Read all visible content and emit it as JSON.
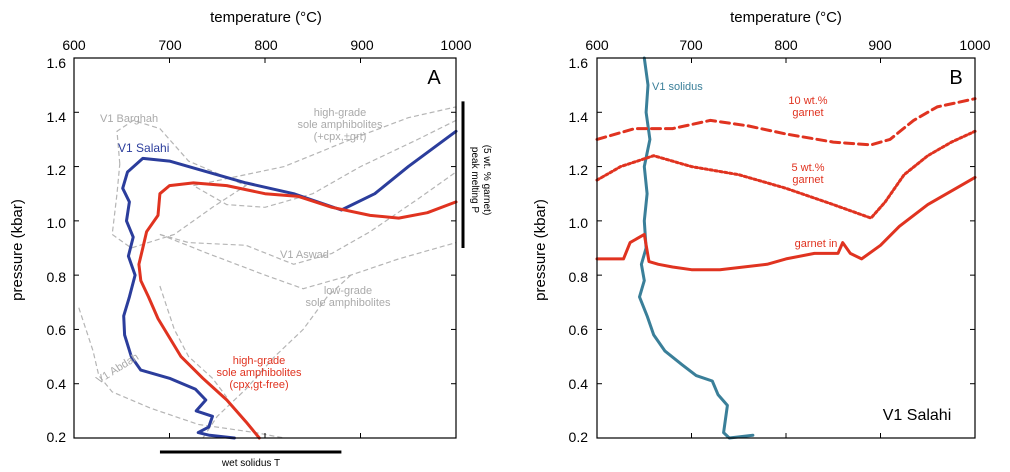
{
  "chart_data": [
    {
      "panel": "A",
      "type": "line",
      "xlabel": "temperature (°C)",
      "ylabel": "pressure (kbar)",
      "xlim": [
        600,
        1000
      ],
      "ylim": [
        0.2,
        1.6
      ],
      "xticks": [
        "600",
        "700",
        "800",
        "900",
        "1000"
      ],
      "yticks": [
        "0.2",
        "0.4",
        "0.6",
        "0.8",
        "1.0",
        "1.2",
        "1.4",
        "1.6"
      ],
      "grid": false,
      "series": [
        {
          "name": "V1 Salahi",
          "color": "#2b3d9c",
          "points": [
            [
              768,
              0.2
            ],
            [
              742,
              0.21
            ],
            [
              730,
              0.22
            ],
            [
              741,
              0.24
            ],
            [
              745,
              0.28
            ],
            [
              728,
              0.3
            ],
            [
              738,
              0.34
            ],
            [
              727,
              0.38
            ],
            [
              700,
              0.42
            ],
            [
              670,
              0.45
            ],
            [
              660,
              0.5
            ],
            [
              653,
              0.58
            ],
            [
              652,
              0.65
            ],
            [
              658,
              0.72
            ],
            [
              664,
              0.8
            ],
            [
              657,
              0.87
            ],
            [
              662,
              0.94
            ],
            [
              655,
              1.0
            ],
            [
              658,
              1.07
            ],
            [
              651,
              1.12
            ],
            [
              656,
              1.18
            ],
            [
              672,
              1.23
            ],
            [
              700,
              1.22
            ],
            [
              730,
              1.19
            ],
            [
              780,
              1.14
            ],
            [
              830,
              1.1
            ],
            [
              880,
              1.04
            ],
            [
              915,
              1.1
            ],
            [
              950,
              1.2
            ],
            [
              1000,
              1.33
            ]
          ]
        },
        {
          "name": "high-grade sole amphibolites (cpx,gt-free)",
          "color": "#e03320",
          "points": [
            [
              794,
              0.2
            ],
            [
              780,
              0.26
            ],
            [
              760,
              0.34
            ],
            [
              735,
              0.42
            ],
            [
              712,
              0.5
            ],
            [
              700,
              0.57
            ],
            [
              688,
              0.64
            ],
            [
              678,
              0.72
            ],
            [
              670,
              0.78
            ],
            [
              668,
              0.84
            ],
            [
              672,
              0.9
            ],
            [
              676,
              0.96
            ],
            [
              688,
              1.02
            ],
            [
              690,
              1.1
            ],
            [
              700,
              1.13
            ],
            [
              725,
              1.14
            ],
            [
              760,
              1.13
            ],
            [
              800,
              1.1
            ],
            [
              835,
              1.09
            ],
            [
              870,
              1.05
            ],
            [
              910,
              1.02
            ],
            [
              940,
              1.01
            ],
            [
              970,
              1.03
            ],
            [
              1000,
              1.07
            ]
          ]
        }
      ],
      "reference_outlines": [
        {
          "name": "V1 Barghah",
          "points": [
            [
              648,
              1.21
            ],
            [
              645,
              1.33
            ],
            [
              662,
              1.37
            ],
            [
              690,
              1.34
            ],
            [
              720,
              1.22
            ],
            [
              780,
              1.13
            ],
            [
              745,
              1.05
            ],
            [
              705,
              0.95
            ],
            [
              660,
              0.9
            ],
            [
              640,
              0.95
            ],
            [
              645,
              1.1
            ],
            [
              648,
              1.21
            ]
          ]
        },
        {
          "name": "high-grade sole amphibolites (+cpx,±grt)",
          "points": [
            [
              725,
              1.13
            ],
            [
              820,
              1.2
            ],
            [
              890,
              1.3
            ],
            [
              950,
              1.38
            ],
            [
              1000,
              1.42
            ],
            [
              1000,
              1.37
            ],
            [
              960,
              1.3
            ],
            [
              900,
              1.2
            ],
            [
              850,
              1.1
            ],
            [
              800,
              1.05
            ],
            [
              760,
              1.06
            ],
            [
              725,
              1.13
            ]
          ]
        },
        {
          "name": "V1 Aswad",
          "points": [
            [
              690,
              0.95
            ],
            [
              720,
              0.92
            ],
            [
              780,
              0.91
            ],
            [
              830,
              0.84
            ],
            [
              870,
              0.88
            ],
            [
              910,
              0.96
            ],
            [
              960,
              1.08
            ],
            [
              1000,
              1.18
            ]
          ]
        },
        {
          "name": "low-grade sole amphibolites",
          "points": [
            [
              690,
              0.95
            ],
            [
              740,
              0.88
            ],
            [
              800,
              0.8
            ],
            [
              840,
              0.75
            ],
            [
              890,
              0.8
            ],
            [
              940,
              0.86
            ],
            [
              1000,
              0.92
            ]
          ]
        },
        {
          "name": "V1 Abdah",
          "points": [
            [
              605,
              0.68
            ],
            [
              620,
              0.52
            ],
            [
              626,
              0.43
            ],
            [
              640,
              0.37
            ],
            [
              680,
              0.31
            ],
            [
              730,
              0.25
            ],
            [
              790,
              0.22
            ],
            [
              820,
              0.2
            ]
          ]
        },
        {
          "name": "",
          "points": [
            [
              735,
              0.2
            ],
            [
              750,
              0.28
            ],
            [
              780,
              0.38
            ],
            [
              810,
              0.5
            ],
            [
              840,
              0.6
            ],
            [
              865,
              0.72
            ],
            [
              890,
              0.8
            ]
          ]
        },
        {
          "name": "",
          "points": [
            [
              690,
              0.76
            ],
            [
              705,
              0.6
            ],
            [
              720,
              0.5
            ],
            [
              745,
              0.42
            ],
            [
              760,
              0.35
            ]
          ]
        }
      ],
      "labels": [
        {
          "text": "A",
          "color": "#000000"
        },
        {
          "text": "V1 Barghah",
          "color": "#aaaaaa"
        },
        {
          "text": "V1 Salahi",
          "color": "#2b3d9c"
        },
        {
          "text": "high-grade",
          "color": "#aaaaaa"
        },
        {
          "text": "sole amphibolites",
          "color": "#aaaaaa"
        },
        {
          "text": "(+cpx,±grt)",
          "color": "#aaaaaa"
        },
        {
          "text": "V1 Aswad",
          "color": "#aaaaaa"
        },
        {
          "text": "low-grade",
          "color": "#aaaaaa"
        },
        {
          "text": "sole amphibolites",
          "color": "#aaaaaa"
        },
        {
          "text": "high-grade",
          "color": "#e03320"
        },
        {
          "text": "sole amphibolites",
          "color": "#e03320"
        },
        {
          "text": "(cpx,gt-free)",
          "color": "#e03320"
        },
        {
          "text": "V1 Abdah",
          "color": "#aaaaaa"
        }
      ],
      "bars": {
        "wet_solidus_label": "wet solidus T",
        "wet_solidus_range": [
          690,
          880
        ],
        "peak_melting_label_1": "peak melting P",
        "peak_melting_label_2": "(5 wt. % garnet)",
        "peak_melting_range": [
          0.9,
          1.44
        ]
      }
    },
    {
      "panel": "B",
      "type": "line",
      "xlabel": "temperature (°C)",
      "ylabel": "pressure (kbar)",
      "xlim": [
        600,
        1000
      ],
      "ylim": [
        0.2,
        1.6
      ],
      "xticks": [
        "600",
        "700",
        "800",
        "900",
        "1000"
      ],
      "yticks": [
        "0.2",
        "0.4",
        "0.6",
        "0.8",
        "1.0",
        "1.2",
        "1.4",
        "1.6"
      ],
      "grid": false,
      "series": [
        {
          "name": "V1 solidus",
          "color": "#3a7f99",
          "points": [
            [
              650,
              1.6
            ],
            [
              654,
              1.5
            ],
            [
              652,
              1.4
            ],
            [
              656,
              1.3
            ],
            [
              650,
              1.2
            ],
            [
              653,
              1.1
            ],
            [
              650,
              1.0
            ],
            [
              652,
              0.9
            ],
            [
              647,
              0.84
            ],
            [
              650,
              0.78
            ],
            [
              645,
              0.72
            ],
            [
              653,
              0.65
            ],
            [
              660,
              0.58
            ],
            [
              672,
              0.52
            ],
            [
              690,
              0.47
            ],
            [
              705,
              0.43
            ],
            [
              722,
              0.41
            ],
            [
              728,
              0.36
            ],
            [
              738,
              0.32
            ],
            [
              736,
              0.27
            ],
            [
              734,
              0.22
            ],
            [
              740,
              0.2
            ],
            [
              765,
              0.21
            ]
          ]
        },
        {
          "name": "garnet in",
          "color": "#e03320",
          "points": [
            [
              600,
              0.86
            ],
            [
              628,
              0.86
            ],
            [
              635,
              0.92
            ],
            [
              650,
              0.95
            ],
            [
              655,
              0.85
            ],
            [
              665,
              0.84
            ],
            [
              680,
              0.83
            ],
            [
              700,
              0.82
            ],
            [
              730,
              0.82
            ],
            [
              780,
              0.84
            ],
            [
              800,
              0.86
            ],
            [
              830,
              0.88
            ],
            [
              855,
              0.88
            ],
            [
              860,
              0.92
            ],
            [
              868,
              0.88
            ],
            [
              880,
              0.86
            ],
            [
              900,
              0.91
            ],
            [
              920,
              0.98
            ],
            [
              950,
              1.06
            ],
            [
              980,
              1.12
            ],
            [
              1000,
              1.16
            ]
          ]
        },
        {
          "name": "5 wt.% garnet",
          "color": "#e03320",
          "points": [
            [
              600,
              1.15
            ],
            [
              625,
              1.2
            ],
            [
              660,
              1.24
            ],
            [
              700,
              1.2
            ],
            [
              750,
              1.17
            ],
            [
              800,
              1.12
            ],
            [
              850,
              1.06
            ],
            [
              890,
              1.01
            ],
            [
              905,
              1.07
            ],
            [
              925,
              1.17
            ],
            [
              950,
              1.24
            ],
            [
              975,
              1.29
            ],
            [
              1000,
              1.33
            ]
          ]
        },
        {
          "name": "10 wt.% garnet",
          "color": "#e03320",
          "points": [
            [
              600,
              1.3
            ],
            [
              640,
              1.34
            ],
            [
              680,
              1.34
            ],
            [
              720,
              1.37
            ],
            [
              760,
              1.35
            ],
            [
              800,
              1.32
            ],
            [
              850,
              1.29
            ],
            [
              890,
              1.28
            ],
            [
              910,
              1.3
            ],
            [
              935,
              1.37
            ],
            [
              960,
              1.42
            ],
            [
              1000,
              1.45
            ]
          ]
        }
      ],
      "labels": [
        {
          "text": "B",
          "color": "#000000"
        },
        {
          "text": "V1 solidus",
          "color": "#3a7f99"
        },
        {
          "text": "10 wt.%",
          "color": "#e03320"
        },
        {
          "text": "garnet",
          "color": "#e03320"
        },
        {
          "text": "5 wt.%",
          "color": "#e03320"
        },
        {
          "text": "garnet",
          "color": "#e03320"
        },
        {
          "text": "garnet in",
          "color": "#e03320"
        },
        {
          "text": "V1 Salahi",
          "color": "#000000"
        }
      ]
    }
  ]
}
